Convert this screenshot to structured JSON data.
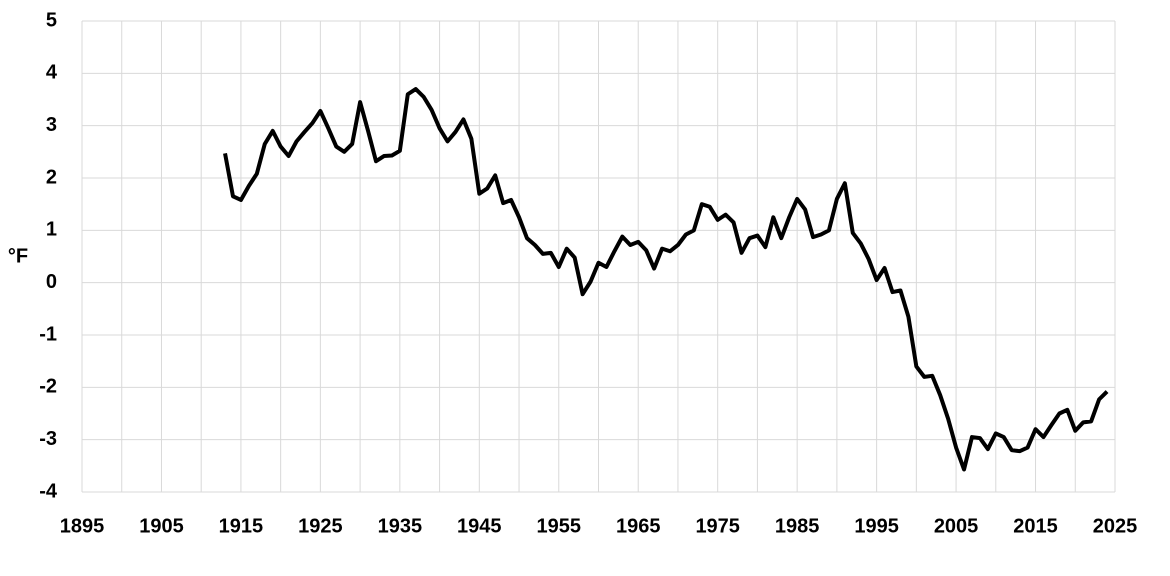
{
  "chart_data": {
    "type": "line",
    "y_label": "°F",
    "x": [
      1913,
      1914,
      1915,
      1916,
      1917,
      1918,
      1919,
      1920,
      1921,
      1922,
      1923,
      1924,
      1925,
      1926,
      1927,
      1928,
      1929,
      1930,
      1931,
      1932,
      1933,
      1934,
      1935,
      1936,
      1937,
      1938,
      1939,
      1940,
      1941,
      1942,
      1943,
      1944,
      1945,
      1946,
      1947,
      1948,
      1949,
      1950,
      1951,
      1952,
      1953,
      1954,
      1955,
      1956,
      1957,
      1958,
      1959,
      1960,
      1961,
      1962,
      1963,
      1964,
      1965,
      1966,
      1967,
      1968,
      1969,
      1970,
      1971,
      1972,
      1973,
      1974,
      1975,
      1976,
      1977,
      1978,
      1979,
      1980,
      1981,
      1982,
      1983,
      1984,
      1985,
      1986,
      1987,
      1988,
      1989,
      1990,
      1991,
      1992,
      1993,
      1994,
      1995,
      1996,
      1997,
      1998,
      1999,
      2000,
      2001,
      2002,
      2003,
      2004,
      2005,
      2006,
      2007,
      2008,
      2009,
      2010,
      2011,
      2012,
      2013,
      2014,
      2015,
      2016,
      2017,
      2018,
      2019,
      2020,
      2021,
      2022,
      2023,
      2024
    ],
    "series": [
      {
        "color": "#000000",
        "values": [
          2.47,
          1.65,
          1.58,
          1.85,
          2.08,
          2.65,
          2.9,
          2.6,
          2.42,
          2.7,
          2.88,
          3.05,
          3.28,
          2.95,
          2.6,
          2.5,
          2.65,
          3.45,
          2.9,
          2.32,
          2.42,
          2.43,
          2.52,
          3.6,
          3.7,
          3.55,
          3.3,
          2.95,
          2.7,
          2.88,
          3.12,
          2.75,
          1.7,
          1.8,
          2.05,
          1.52,
          1.58,
          1.25,
          0.85,
          0.72,
          0.55,
          0.57,
          0.3,
          0.65,
          0.48,
          -0.22,
          0.02,
          0.38,
          0.3,
          0.6,
          0.88,
          0.72,
          0.78,
          0.62,
          0.27,
          0.65,
          0.6,
          0.72,
          0.92,
          1.0,
          1.5,
          1.45,
          1.2,
          1.3,
          1.15,
          0.57,
          0.85,
          0.9,
          0.68,
          1.25,
          0.85,
          1.25,
          1.6,
          1.4,
          0.87,
          0.92,
          1.0,
          1.6,
          1.9,
          0.95,
          0.75,
          0.45,
          0.05,
          0.28,
          -0.18,
          -0.15,
          -0.65,
          -1.6,
          -1.8,
          -1.78,
          -2.15,
          -2.6,
          -3.15,
          -3.57,
          -2.95,
          -2.97,
          -3.18,
          -2.88,
          -2.95,
          -3.2,
          -3.22,
          -3.15,
          -2.8,
          -2.95,
          -2.72,
          -2.5,
          -2.43,
          -2.83,
          -2.67,
          -2.65,
          -2.23,
          -2.08
        ]
      }
    ],
    "xlim": [
      1895,
      2025
    ],
    "xticks": [
      1895,
      1905,
      1915,
      1925,
      1935,
      1945,
      1955,
      1965,
      1975,
      1985,
      1995,
      2005,
      2015,
      2025
    ],
    "x_gridlines": [
      1895,
      1900,
      1905,
      1910,
      1915,
      1920,
      1925,
      1930,
      1935,
      1940,
      1945,
      1950,
      1955,
      1960,
      1965,
      1970,
      1975,
      1980,
      1985,
      1990,
      1995,
      2000,
      2005,
      2010,
      2015,
      2020,
      2025
    ],
    "ylim": [
      -4,
      5
    ],
    "yticks": [
      -4,
      -3,
      -2,
      -1,
      0,
      1,
      2,
      3,
      4,
      5
    ],
    "grid": true
  }
}
